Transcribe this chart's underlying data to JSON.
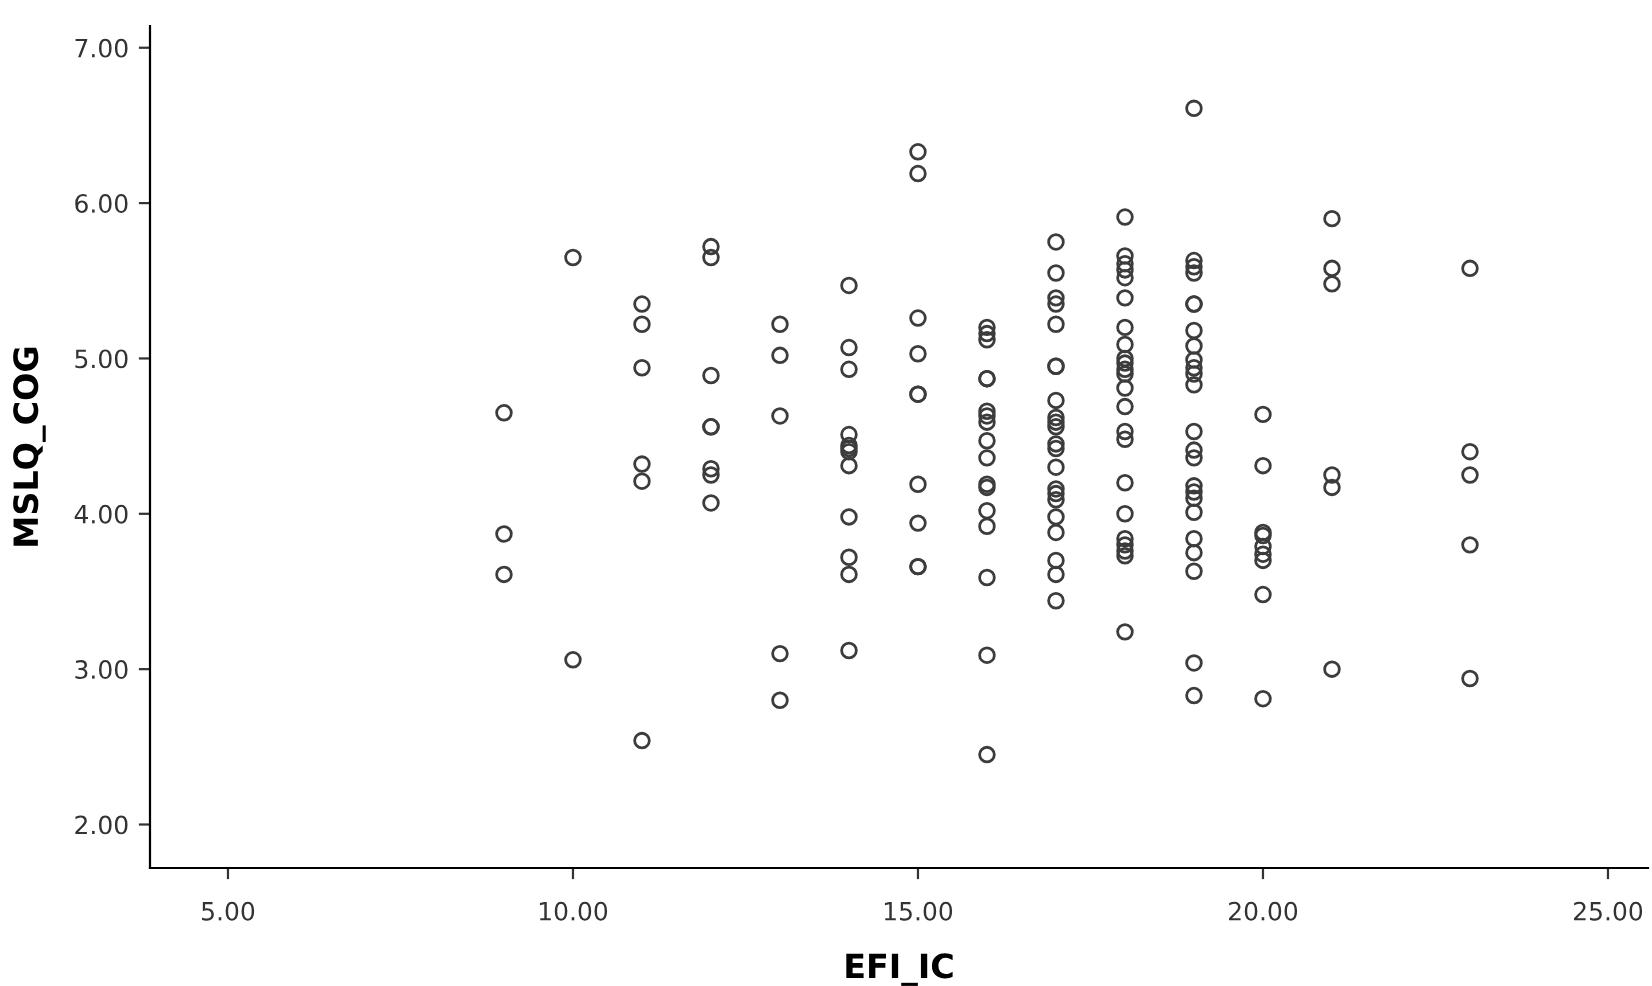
{
  "chart_data": {
    "type": "scatter",
    "xlabel": "EFI_IC",
    "ylabel": "MSLQ_COG",
    "xlim": [
      3.87,
      25.58
    ],
    "ylim": [
      1.72,
      7.14
    ],
    "xticks": [
      {
        "value": 5,
        "label": "5.00"
      },
      {
        "value": 10,
        "label": "10.00"
      },
      {
        "value": 15,
        "label": "15.00"
      },
      {
        "value": 20,
        "label": "20.00"
      },
      {
        "value": 25,
        "label": "25.00"
      }
    ],
    "yticks": [
      {
        "value": 2,
        "label": "2.00"
      },
      {
        "value": 3,
        "label": "3.00"
      },
      {
        "value": 4,
        "label": "4.00"
      },
      {
        "value": 5,
        "label": "5.00"
      },
      {
        "value": 6,
        "label": "6.00"
      },
      {
        "value": 7,
        "label": "7.00"
      }
    ],
    "grid": false,
    "legend": false,
    "marker": "circle",
    "series": [
      {
        "color": "#3c3c3c",
        "x": [
          9,
          9,
          9,
          10,
          10,
          11,
          11,
          11,
          11,
          11,
          11,
          12,
          12,
          12,
          12,
          12,
          12,
          12,
          12,
          13,
          13,
          13,
          13,
          13,
          14,
          14,
          14,
          14,
          14,
          14,
          14,
          14,
          14,
          14,
          14,
          14,
          15,
          15,
          15,
          15,
          15,
          15,
          15,
          15,
          15,
          15,
          16,
          16,
          16,
          16,
          16,
          16,
          16,
          16,
          16,
          16,
          16,
          16,
          16,
          16,
          16,
          16,
          16,
          17,
          17,
          17,
          17,
          17,
          17,
          17,
          17,
          17,
          17,
          17,
          17,
          17,
          17,
          17,
          17,
          17,
          17,
          17,
          17,
          17,
          17,
          18,
          18,
          18,
          18,
          18,
          18,
          18,
          18,
          18,
          18,
          18,
          18,
          18,
          18,
          18,
          18,
          18,
          18,
          18,
          18,
          18,
          18,
          18,
          19,
          19,
          19,
          19,
          19,
          19,
          19,
          19,
          19,
          19,
          19,
          19,
          19,
          19,
          19,
          19,
          19,
          19,
          19,
          19,
          19,
          19,
          19,
          19,
          20,
          20,
          20,
          20,
          20,
          20,
          20,
          20,
          20,
          21,
          21,
          21,
          21,
          21,
          21,
          23,
          23,
          23,
          23,
          23
        ],
        "values": [
          4.65,
          3.87,
          3.61,
          5.65,
          3.06,
          5.35,
          5.22,
          4.94,
          4.32,
          4.21,
          2.54,
          5.72,
          5.65,
          4.89,
          4.56,
          4.56,
          4.29,
          4.25,
          4.07,
          5.22,
          5.02,
          4.63,
          3.1,
          2.8,
          5.47,
          5.07,
          4.93,
          4.51,
          4.44,
          4.42,
          4.4,
          4.31,
          3.98,
          3.72,
          3.61,
          3.12,
          6.33,
          6.19,
          5.26,
          5.03,
          4.77,
          4.77,
          4.19,
          3.94,
          3.66,
          3.66,
          5.2,
          5.16,
          5.12,
          4.87,
          4.87,
          4.66,
          4.63,
          4.59,
          4.47,
          4.36,
          4.19,
          4.17,
          4.02,
          3.92,
          3.59,
          3.09,
          2.45,
          5.75,
          5.55,
          5.39,
          5.35,
          5.22,
          4.95,
          4.95,
          4.73,
          4.62,
          4.59,
          4.56,
          4.45,
          4.42,
          4.3,
          4.16,
          4.13,
          4.09,
          3.98,
          3.88,
          3.7,
          3.61,
          3.44,
          5.91,
          5.66,
          5.61,
          5.57,
          5.52,
          5.39,
          5.2,
          5.09,
          5.0,
          4.97,
          4.93,
          4.9,
          4.81,
          4.69,
          4.53,
          4.48,
          4.2,
          4.0,
          3.84,
          3.8,
          3.76,
          3.73,
          3.24,
          6.61,
          5.63,
          5.59,
          5.55,
          5.35,
          5.35,
          5.18,
          5.08,
          4.99,
          4.94,
          4.9,
          4.83,
          4.53,
          4.41,
          4.36,
          4.18,
          4.14,
          4.1,
          4.01,
          3.84,
          3.75,
          3.63,
          3.04,
          2.83,
          4.64,
          4.31,
          3.88,
          3.86,
          3.79,
          3.74,
          3.7,
          3.48,
          2.81,
          5.9,
          5.58,
          5.48,
          4.25,
          4.17,
          3.0,
          5.58,
          4.4,
          4.25,
          3.8,
          2.94
        ]
      }
    ]
  }
}
